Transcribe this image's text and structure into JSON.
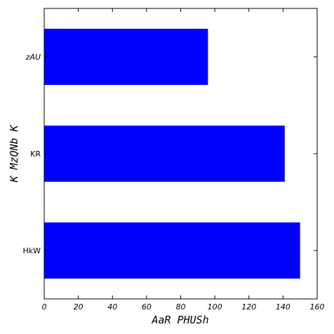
{
  "chart_data": {
    "type": "bar",
    "orientation": "horizontal",
    "categories": [
      "HkW",
      "KR",
      "zAU"
    ],
    "category_italic": [
      false,
      false,
      true
    ],
    "values": [
      150,
      141,
      96
    ],
    "bar_color": "#0000ff",
    "xlabel": "AaR PHUSh",
    "ylabel": "K MzQNb K",
    "xlim": [
      0,
      160
    ],
    "xticks": [
      "0",
      "20",
      "40",
      "60",
      "80",
      "100",
      "120",
      "140",
      "160"
    ],
    "grid": false,
    "legend": "none"
  }
}
